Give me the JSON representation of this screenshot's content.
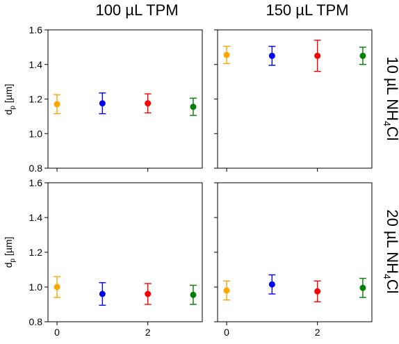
{
  "chart_data": {
    "type": "scatter",
    "col_titles": [
      "100 µL TPM",
      "150 µL TPM"
    ],
    "row_titles": [
      "10 µL NH",
      "20 µL NH"
    ],
    "row_title_sub": "4",
    "row_title_tail": "Cl",
    "ylabel_main": "d",
    "ylabel_sub": "p",
    "ylabel_unit": " [µm]",
    "ylim": [
      0.8,
      1.6
    ],
    "yticks": [
      "0.8",
      "1.0",
      "1.2",
      "1.4",
      "1.6"
    ],
    "xlim": [
      -0.2,
      3.2
    ],
    "xticks": [
      "0",
      "2"
    ],
    "series_colors": [
      "#ffa500",
      "#0000ff",
      "#ff0000",
      "#008000"
    ],
    "panels": [
      {
        "name": "panel-100tpm-10nh4cl",
        "points": [
          {
            "x": 0,
            "y": 1.17,
            "err": 0.055
          },
          {
            "x": 1,
            "y": 1.175,
            "err": 0.06
          },
          {
            "x": 2,
            "y": 1.175,
            "err": 0.055
          },
          {
            "x": 3,
            "y": 1.155,
            "err": 0.05
          }
        ]
      },
      {
        "name": "panel-150tpm-10nh4cl",
        "points": [
          {
            "x": 0,
            "y": 1.455,
            "err": 0.05
          },
          {
            "x": 1,
            "y": 1.45,
            "err": 0.055
          },
          {
            "x": 2,
            "y": 1.45,
            "err": 0.09
          },
          {
            "x": 3,
            "y": 1.45,
            "err": 0.05
          }
        ]
      },
      {
        "name": "panel-100tpm-20nh4cl",
        "points": [
          {
            "x": 0,
            "y": 1.0,
            "err": 0.06
          },
          {
            "x": 1,
            "y": 0.96,
            "err": 0.065
          },
          {
            "x": 2,
            "y": 0.96,
            "err": 0.06
          },
          {
            "x": 3,
            "y": 0.955,
            "err": 0.055
          }
        ]
      },
      {
        "name": "panel-150tpm-20nh4cl",
        "points": [
          {
            "x": 0,
            "y": 0.98,
            "err": 0.055
          },
          {
            "x": 1,
            "y": 1.015,
            "err": 0.055
          },
          {
            "x": 2,
            "y": 0.975,
            "err": 0.06
          },
          {
            "x": 3,
            "y": 0.995,
            "err": 0.055
          }
        ]
      }
    ]
  }
}
